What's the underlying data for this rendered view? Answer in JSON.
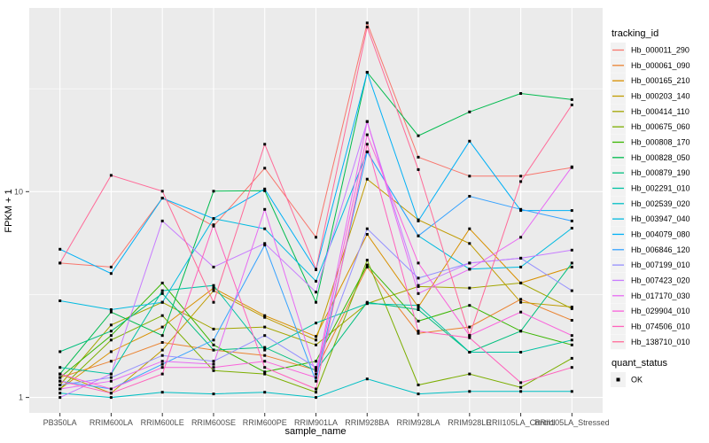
{
  "chart_data": {
    "type": "line",
    "title": "",
    "xlabel": "sample_name",
    "ylabel": "FPKM + 1",
    "y_scale": "log10",
    "y_tick_labels": [
      "1",
      "10"
    ],
    "y_tick_values": [
      1,
      10
    ],
    "y_minor_values": [
      3.162,
      31.62
    ],
    "ylim": [
      0.95,
      78
    ],
    "grid": true,
    "panel_bg": "#EBEBEB",
    "grid_color": "#FFFFFF",
    "tick_label_color": "#4D4D4D",
    "marker": "black-square",
    "legend_position": "right",
    "legend_title": "tracking_id",
    "legend_key_bg": "#F2F2F2",
    "legend2": {
      "title": "quant_status",
      "items": [
        {
          "label": "OK",
          "marker": "black-square"
        }
      ]
    },
    "categories": [
      "PB350LA",
      "RRIM600LA",
      "RRIM600LE",
      "RRIM600SE",
      "RRIM600PE",
      "RRIM901LA",
      "RRIM928BA",
      "RRIM928LA",
      "RRIM928LE",
      "RRII105LA_Control",
      "RRII105LA_Stressed"
    ],
    "series": [
      {
        "name": "Hb_000011_290",
        "color": "#F8766D",
        "values": [
          4.5,
          4.3,
          9.3,
          6.8,
          13,
          6,
          66,
          14.7,
          11.9,
          11.9,
          13.1
        ]
      },
      {
        "name": "Hb_000061_090",
        "color": "#EA8331",
        "values": [
          1.25,
          1.5,
          1.85,
          1.7,
          1.6,
          1.36,
          4.3,
          2.05,
          2.2,
          3.0,
          2.37
        ]
      },
      {
        "name": "Hb_000165_210",
        "color": "#D89000",
        "values": [
          1.1,
          1.67,
          2.2,
          3.4,
          2.5,
          1.98,
          6.2,
          2.75,
          6.6,
          3.6,
          4.3
        ]
      },
      {
        "name": "Hb_000203_140",
        "color": "#C09B00",
        "values": [
          1.3,
          1.05,
          1.7,
          3.3,
          2.45,
          1.9,
          11.5,
          7.3,
          5.6,
          2.9,
          2.75
        ]
      },
      {
        "name": "Hb_000414_110",
        "color": "#A3A500",
        "values": [
          1.15,
          2.25,
          2.9,
          2.15,
          2.2,
          1.8,
          2.86,
          3.46,
          3.4,
          3.6,
          2.7
        ]
      },
      {
        "name": "Hb_000675_060",
        "color": "#7CAE00",
        "values": [
          1.1,
          1.9,
          2.5,
          1.35,
          1.3,
          1.06,
          4.65,
          1.15,
          1.3,
          1.12,
          1.55
        ]
      },
      {
        "name": "Hb_000808_170",
        "color": "#39B600",
        "values": [
          1.25,
          2.0,
          3.6,
          1.8,
          1.33,
          1.5,
          4.4,
          2.35,
          2.8,
          2.1,
          1.8
        ]
      },
      {
        "name": "Hb_000828_050",
        "color": "#00BB4E",
        "values": [
          1.3,
          2.6,
          2.0,
          10.05,
          10.1,
          2.9,
          38,
          18.7,
          24.4,
          30,
          28
        ]
      },
      {
        "name": "Hb_000879_190",
        "color": "#00BF7D",
        "values": [
          1.67,
          2.1,
          3.2,
          1.7,
          1.75,
          1.35,
          2.9,
          2.67,
          1.66,
          2.1,
          4.5
        ]
      },
      {
        "name": "Hb_002291_010",
        "color": "#00C1A3",
        "values": [
          1.4,
          1.3,
          3.3,
          3.5,
          1.7,
          2.3,
          2.86,
          2.8,
          1.66,
          1.66,
          1.9
        ]
      },
      {
        "name": "Hb_002539_020",
        "color": "#00BFC4",
        "values": [
          1.05,
          1.0,
          1.06,
          1.04,
          1.06,
          1.0,
          1.23,
          1.04,
          1.07,
          1.07,
          1.07
        ]
      },
      {
        "name": "Hb_003947_040",
        "color": "#00BAE0",
        "values": [
          2.95,
          2.67,
          2.9,
          7.4,
          6.6,
          3.67,
          15.6,
          6.1,
          4.2,
          4.3,
          6.65
        ]
      },
      {
        "name": "Hb_004079_080",
        "color": "#00B0F6",
        "values": [
          5.25,
          4.0,
          9.3,
          7.4,
          10.3,
          4.17,
          38,
          7.2,
          17.6,
          8.1,
          8.1
        ]
      },
      {
        "name": "Hb_006846_120",
        "color": "#35A2FF",
        "values": [
          1.2,
          1.1,
          1.45,
          1.9,
          5.5,
          1.2,
          15.6,
          6.1,
          9.5,
          8.2,
          7.2
        ]
      },
      {
        "name": "Hb_007199_010",
        "color": "#9590FF",
        "values": [
          1.15,
          1.25,
          1.6,
          1.5,
          2.0,
          1.4,
          6.6,
          3.8,
          4.5,
          4.75,
          3.3
        ]
      },
      {
        "name": "Hb_007423_020",
        "color": "#C77CFF",
        "values": [
          1.0,
          1.3,
          7.2,
          4.3,
          5.6,
          3.25,
          21.9,
          3.5,
          4.5,
          4.75,
          5.2
        ]
      },
      {
        "name": "Hb_017170_030",
        "color": "#E76BF3",
        "values": [
          1.1,
          1.2,
          1.5,
          1.45,
          8.2,
          1.3,
          21.9,
          3.2,
          4.2,
          6.0,
          13.2
        ]
      },
      {
        "name": "Hb_029904_010",
        "color": "#FA62DB",
        "values": [
          1.3,
          1.1,
          1.4,
          1.4,
          1.5,
          1.25,
          18.9,
          4.5,
          2.0,
          2.6,
          2.0
        ]
      },
      {
        "name": "Hb_074506_010",
        "color": "#FF62BC",
        "values": [
          1.2,
          1.05,
          1.3,
          6.9,
          1.4,
          1.1,
          17.0,
          2.1,
          1.95,
          1.18,
          1.4
        ]
      },
      {
        "name": "Hb_138710_010",
        "color": "#FF6A98",
        "values": [
          4.5,
          12.0,
          10.05,
          2.9,
          17.0,
          4.2,
          63,
          12.8,
          2.0,
          11.2,
          26.4
        ]
      }
    ]
  }
}
